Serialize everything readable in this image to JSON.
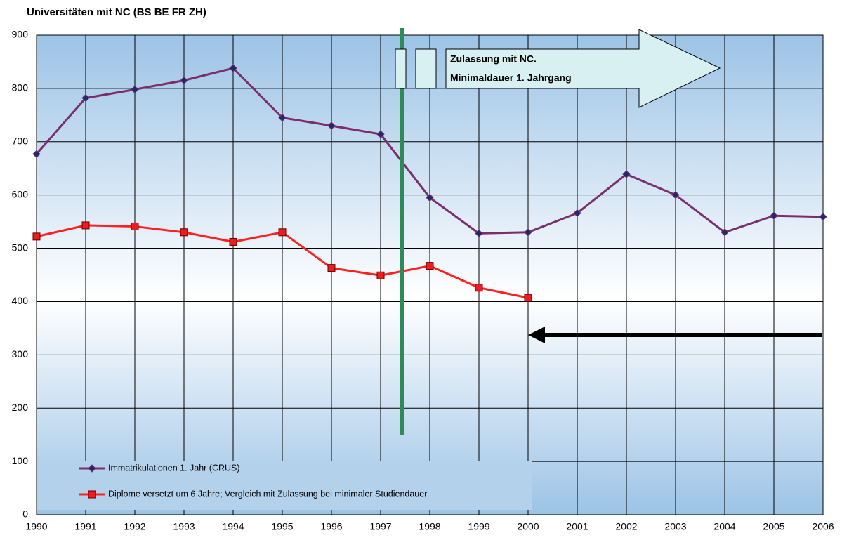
{
  "chart_data": {
    "type": "line",
    "title": "Universitäten mit NC (BS BE FR ZH)",
    "categories": [
      "1990",
      "1991",
      "1992",
      "1993",
      "1994",
      "1995",
      "1996",
      "1997",
      "1998",
      "1999",
      "2000",
      "2001",
      "2002",
      "2003",
      "2004",
      "2005",
      "2006"
    ],
    "series": [
      {
        "name": "Immatrikulationen 1. Jahr (CRUS)",
        "color": "#7b2e6c",
        "marker": "diamond",
        "marker_color": "#1f2a6b",
        "values": [
          677,
          782,
          798,
          815,
          838,
          745,
          730,
          714,
          595,
          528,
          530,
          566,
          639,
          600,
          530,
          561,
          559
        ]
      },
      {
        "name": "Diplome versetzt um 6 Jahre; Vergleich mit Zulassung bei minimaler Studiendauer",
        "color": "#ff2020",
        "marker": "square",
        "marker_color": "#ee1c1c",
        "values": [
          522,
          543,
          541,
          530,
          512,
          530,
          463,
          449,
          467,
          426,
          407,
          null,
          null,
          null,
          null,
          null,
          null
        ]
      }
    ],
    "ylim": [
      0,
      900
    ],
    "yticks": [
      0,
      100,
      200,
      300,
      400,
      500,
      600,
      700,
      800,
      900
    ],
    "grid": true,
    "legend": "bottom-left",
    "annotations": [
      "Zulassung mit NC.",
      "Minimaldauer 1. Jahrgang"
    ]
  }
}
